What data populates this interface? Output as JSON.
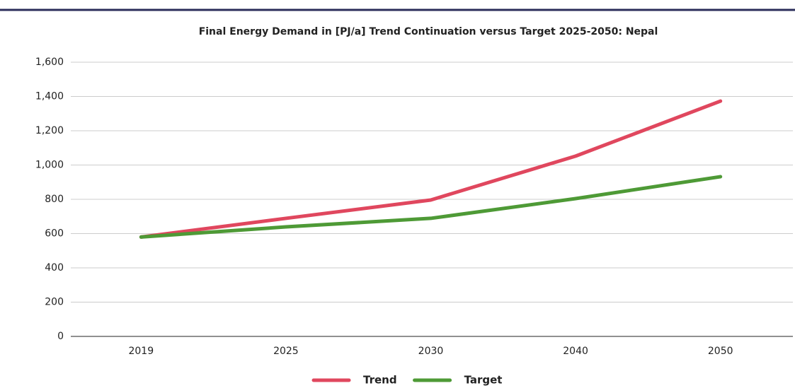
{
  "chart_data": {
    "type": "line",
    "title": "Final Energy Demand in [PJ/a] Trend Continuation versus Target 2025-2050:  Nepal",
    "categories": [
      "2019",
      "2025",
      "2030",
      "2040",
      "2050"
    ],
    "series": [
      {
        "name": "Trend",
        "color": "#e0475e",
        "values": [
          580,
          689,
          796,
          1052,
          1373
        ]
      },
      {
        "name": "Target",
        "color": "#4e9a36",
        "values": [
          580,
          639,
          689,
          804,
          932
        ]
      }
    ],
    "ylim": [
      0,
      1600
    ],
    "yticks": [
      0,
      200,
      400,
      600,
      800,
      {
        "value": 1000,
        "label": "1,000"
      },
      {
        "value": 1200,
        "label": "1,200"
      },
      {
        "value": 1400,
        "label": "1,400"
      },
      {
        "value": 1600,
        "label": "1,600"
      }
    ],
    "grid": true,
    "legend": "bottom"
  }
}
